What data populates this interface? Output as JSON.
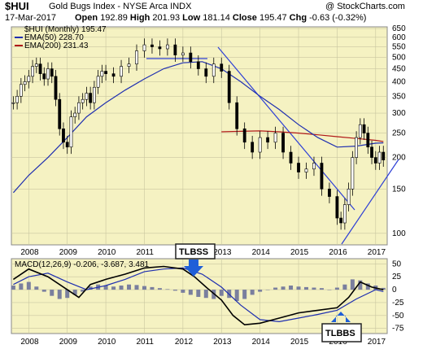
{
  "header": {
    "symbol": "$HUI",
    "name": "Gold Bugs Index - NYSE Arca  INDX",
    "copyright": "@ StockCharts.com",
    "date": "17-Mar-2017",
    "open_label": "Open",
    "open": "192.89",
    "high_label": "High",
    "high": "201.93",
    "low_label": "Low",
    "low": "181.14",
    "close_label": "Close",
    "close": "195.47",
    "chg_label": "Chg",
    "chg": "-0.63 (-0.32%)"
  },
  "legend": {
    "price": "$HUI (Monthly) 195.47",
    "ema50": "EMA(50) 228.70",
    "ema200": "EMA(200) 231.43",
    "macd": "MACD(12,26,9) -0.206, -3.687, 3.481"
  },
  "callouts": {
    "top": "TLBSS",
    "bottom": "TLBBS"
  },
  "colors": {
    "plot_bg": "#f5f2c2",
    "candle": "#000000",
    "ema50": "#1f2fb0",
    "ema200": "#b01818",
    "trendline": "#2d3fd6",
    "macd_hist": "#7a7f9e",
    "arrow": "#1f5fd8"
  },
  "chart_data": [
    {
      "type": "line",
      "title": "$HUI (Monthly) 195.47",
      "y_scale": "log",
      "ylim": [
        90,
        660
      ],
      "y_ticks": [
        650,
        600,
        550,
        500,
        450,
        400,
        350,
        300,
        250,
        200,
        150,
        100
      ],
      "x_ticks": [
        "2008",
        "2009",
        "2010",
        "2011",
        "2012",
        "2013",
        "2014",
        "2015",
        "2016",
        "2017"
      ],
      "x_tick_dates": [
        2008,
        2009,
        2010,
        2011,
        2012,
        2013,
        2014,
        2015,
        2016,
        2017
      ],
      "xlim": [
        2007.55,
        2017.3
      ],
      "grid": true,
      "series": [
        {
          "name": "$HUI (Monthly) 195.47",
          "kind": "candlestick_close",
          "x": [
            2007.6,
            2007.7,
            2007.8,
            2007.9,
            2008.0,
            2008.1,
            2008.2,
            2008.3,
            2008.4,
            2008.5,
            2008.6,
            2008.7,
            2008.8,
            2008.9,
            2009.0,
            2009.1,
            2009.2,
            2009.3,
            2009.4,
            2009.5,
            2009.6,
            2009.7,
            2009.8,
            2009.9,
            2010.0,
            2010.2,
            2010.4,
            2010.6,
            2010.8,
            2011.0,
            2011.2,
            2011.4,
            2011.6,
            2011.8,
            2012.0,
            2012.2,
            2012.4,
            2012.6,
            2012.8,
            2013.0,
            2013.2,
            2013.4,
            2013.6,
            2013.8,
            2014.0,
            2014.2,
            2014.4,
            2014.6,
            2014.8,
            2015.0,
            2015.2,
            2015.4,
            2015.6,
            2015.8,
            2016.0,
            2016.1,
            2016.2,
            2016.3,
            2016.4,
            2016.5,
            2016.6,
            2016.7,
            2016.8,
            2016.9,
            2017.0,
            2017.1,
            2017.2
          ],
          "y": [
            330,
            350,
            390,
            400,
            420,
            460,
            470,
            430,
            410,
            450,
            420,
            340,
            260,
            230,
            220,
            290,
            300,
            330,
            340,
            360,
            330,
            380,
            420,
            440,
            430,
            420,
            460,
            470,
            530,
            560,
            550,
            540,
            560,
            510,
            520,
            480,
            450,
            420,
            470,
            440,
            330,
            260,
            230,
            210,
            240,
            230,
            250,
            210,
            190,
            175,
            180,
            190,
            150,
            140,
            115,
            110,
            130,
            150,
            200,
            240,
            270,
            250,
            220,
            200,
            190,
            210,
            195.47
          ]
        },
        {
          "name": "EMA(50) 228.70",
          "kind": "line",
          "x": [
            2007.6,
            2008.0,
            2008.5,
            2009.0,
            2009.5,
            2010.0,
            2010.5,
            2011.0,
            2011.5,
            2012.0,
            2012.5,
            2013.0,
            2013.5,
            2014.0,
            2014.5,
            2015.0,
            2015.5,
            2016.0,
            2016.5,
            2017.0,
            2017.2
          ],
          "y": [
            145,
            170,
            200,
            240,
            290,
            330,
            370,
            410,
            450,
            475,
            480,
            450,
            400,
            350,
            310,
            270,
            240,
            220,
            222,
            228,
            228.7
          ]
        },
        {
          "name": "EMA(200) 231.43",
          "kind": "line",
          "x": [
            2013.0,
            2013.5,
            2014.0,
            2014.5,
            2015.0,
            2015.5,
            2016.0,
            2016.5,
            2017.0,
            2017.2
          ],
          "y": [
            253,
            254,
            255,
            253,
            250,
            246,
            242,
            238,
            234,
            231.43
          ]
        }
      ]
    },
    {
      "type": "line",
      "title": "MACD(12,26,9) -0.206, -3.687, 3.481",
      "ylim": [
        -85,
        60
      ],
      "y_ticks": [
        50,
        25,
        0,
        -25,
        -50,
        -75
      ],
      "x_ticks": [
        "2008",
        "2009",
        "2010",
        "2011",
        "2012",
        "2013",
        "2014",
        "2015",
        "2016",
        "2017"
      ],
      "xlim": [
        2007.55,
        2017.3
      ],
      "grid": true,
      "series": [
        {
          "name": "MACD",
          "kind": "line",
          "x": [
            2007.6,
            2008.0,
            2008.5,
            2009.0,
            2009.3,
            2009.6,
            2010.0,
            2010.5,
            2011.0,
            2011.5,
            2012.0,
            2012.3,
            2012.6,
            2013.0,
            2013.3,
            2013.6,
            2014.0,
            2014.5,
            2015.0,
            2015.5,
            2016.0,
            2016.3,
            2016.6,
            2016.9,
            2017.2
          ],
          "y": [
            20,
            40,
            25,
            0,
            -15,
            10,
            20,
            30,
            42,
            45,
            40,
            25,
            5,
            -20,
            -50,
            -68,
            -65,
            -55,
            -45,
            -40,
            -35,
            -15,
            15,
            5,
            -0.206
          ]
        },
        {
          "name": "Signal",
          "kind": "line",
          "x": [
            2007.6,
            2008.0,
            2008.5,
            2009.0,
            2009.5,
            2010.0,
            2010.5,
            2011.0,
            2011.5,
            2012.0,
            2012.5,
            2013.0,
            2013.5,
            2014.0,
            2014.5,
            2015.0,
            2015.5,
            2016.0,
            2016.5,
            2017.0,
            2017.2
          ],
          "y": [
            10,
            25,
            32,
            15,
            0,
            8,
            20,
            35,
            40,
            42,
            30,
            5,
            -30,
            -58,
            -62,
            -55,
            -48,
            -40,
            -18,
            0,
            -3.687
          ]
        },
        {
          "name": "Histogram",
          "kind": "bar",
          "x": [
            2007.6,
            2007.8,
            2008.0,
            2008.2,
            2008.4,
            2008.6,
            2008.8,
            2009.0,
            2009.2,
            2009.4,
            2009.6,
            2009.8,
            2010.0,
            2010.2,
            2010.4,
            2010.6,
            2010.8,
            2011.0,
            2011.2,
            2011.4,
            2011.6,
            2011.8,
            2012.0,
            2012.2,
            2012.4,
            2012.6,
            2012.8,
            2013.0,
            2013.2,
            2013.4,
            2013.6,
            2013.8,
            2014.0,
            2014.2,
            2014.4,
            2014.6,
            2014.8,
            2015.0,
            2015.2,
            2015.4,
            2015.6,
            2015.8,
            2016.0,
            2016.2,
            2016.4,
            2016.6,
            2016.8,
            2017.0,
            2017.2
          ],
          "y": [
            8,
            12,
            15,
            6,
            -4,
            -12,
            -18,
            -16,
            -10,
            -4,
            6,
            10,
            8,
            6,
            8,
            10,
            9,
            7,
            5,
            3,
            1,
            -2,
            -6,
            -10,
            -14,
            -16,
            -18,
            -12,
            -16,
            -22,
            -18,
            -10,
            -4,
            0,
            4,
            6,
            8,
            6,
            5,
            4,
            3,
            0,
            4,
            10,
            20,
            18,
            12,
            8,
            3.481
          ]
        }
      ]
    }
  ]
}
